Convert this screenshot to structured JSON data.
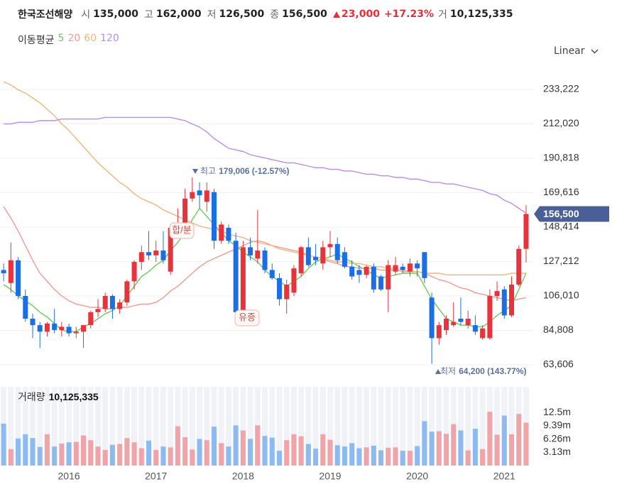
{
  "header": {
    "name": "한국조선해양",
    "fields": [
      {
        "label": "시",
        "value": "135,000"
      },
      {
        "label": "고",
        "value": "162,000"
      },
      {
        "label": "저",
        "value": "126,500"
      },
      {
        "label": "종",
        "value": "156,500"
      }
    ],
    "change": "23,000",
    "change_pct": "+17.23%",
    "volume": {
      "label": "거",
      "value": "10,125,335"
    }
  },
  "scale_menu": "Linear",
  "chart_data": {
    "type": "candlestick",
    "legend_title": "이동평균",
    "categories": [
      null,
      null,
      null,
      null,
      null,
      null,
      null,
      null,
      null,
      "2016",
      null,
      null,
      null,
      null,
      null,
      null,
      null,
      null,
      null,
      null,
      null,
      "2017",
      null,
      null,
      null,
      null,
      null,
      null,
      null,
      null,
      null,
      null,
      null,
      "2018",
      null,
      null,
      null,
      null,
      null,
      null,
      null,
      null,
      null,
      null,
      null,
      "2019",
      null,
      null,
      null,
      null,
      null,
      null,
      null,
      null,
      null,
      null,
      null,
      "2020",
      null,
      null,
      null,
      null,
      null,
      null,
      null,
      null,
      null,
      null,
      null,
      "2021",
      null,
      null,
      null
    ],
    "open": [
      122000,
      114000,
      128000,
      106000,
      92000,
      88000,
      84000,
      89000,
      85000,
      87000,
      83000,
      84000,
      88000,
      96000,
      98000,
      106000,
      98000,
      102000,
      115000,
      127000,
      133000,
      131000,
      134000,
      121000,
      148000,
      150000,
      166000,
      171000,
      164000,
      170000,
      140000,
      148000,
      140000,
      96000,
      136000,
      129000,
      134000,
      122000,
      117000,
      104000,
      108000,
      120000,
      136000,
      130000,
      126000,
      136000,
      138000,
      133000,
      124000,
      122000,
      119000,
      124000,
      118000,
      110000,
      121000,
      124000,
      121000,
      126000,
      133000,
      105000,
      80000,
      85000,
      88000,
      92000,
      88000,
      88000,
      80000,
      80000,
      106000,
      110000,
      94000,
      113000,
      135000
    ],
    "high": [
      126000,
      139000,
      130000,
      110000,
      95000,
      90000,
      90000,
      98000,
      90000,
      89000,
      87000,
      88000,
      97000,
      104000,
      108000,
      107000,
      104000,
      116000,
      128000,
      137000,
      146000,
      140000,
      146000,
      150000,
      160000,
      172000,
      179006,
      176000,
      176000,
      172000,
      152000,
      150000,
      145000,
      140000,
      142000,
      159000,
      136000,
      126000,
      120000,
      116000,
      125000,
      137000,
      142000,
      138000,
      140000,
      146000,
      142000,
      136000,
      128000,
      125000,
      125000,
      126000,
      119000,
      128000,
      130000,
      126000,
      129000,
      128000,
      133000,
      108000,
      90000,
      94000,
      102000,
      105000,
      97000,
      94000,
      88000,
      110000,
      115000,
      112000,
      118000,
      137000,
      162000
    ],
    "low": [
      115000,
      108000,
      104000,
      90000,
      80000,
      74000,
      81000,
      83000,
      81000,
      81000,
      80000,
      74000,
      86000,
      93000,
      96000,
      92000,
      95000,
      100000,
      110000,
      122000,
      128000,
      127000,
      126000,
      119000,
      146000,
      148000,
      164000,
      160000,
      158000,
      135000,
      138000,
      138000,
      95000,
      93000,
      128000,
      126000,
      120000,
      116000,
      100000,
      95000,
      106000,
      118000,
      124000,
      125000,
      122000,
      130000,
      126000,
      123000,
      116000,
      114000,
      117000,
      108000,
      109000,
      96000,
      119000,
      120000,
      118000,
      118000,
      114000,
      64200,
      76000,
      82000,
      87000,
      88000,
      86000,
      82000,
      79000,
      79000,
      103000,
      92000,
      93000,
      112000,
      126500
    ],
    "close": [
      120000,
      128000,
      106000,
      92000,
      88000,
      84000,
      89000,
      85000,
      87000,
      83000,
      84000,
      88000,
      96000,
      98000,
      106000,
      98000,
      102000,
      115000,
      127000,
      133000,
      131000,
      134000,
      128000,
      148000,
      150000,
      166000,
      170000,
      168000,
      171000,
      140000,
      150000,
      140000,
      96000,
      136000,
      131000,
      134000,
      122000,
      117000,
      104000,
      113000,
      123000,
      136000,
      125000,
      128000,
      136000,
      138000,
      128000,
      124000,
      118000,
      119000,
      124000,
      110000,
      110000,
      125000,
      125000,
      122000,
      126000,
      123000,
      117000,
      80000,
      88000,
      92000,
      90000,
      90000,
      92000,
      84000,
      86000,
      106000,
      109000,
      94000,
      113000,
      135000,
      156500
    ],
    "up_color": "#e8323c",
    "down_color": "#1b6fe6",
    "moving_averages": [
      {
        "name": "5",
        "color": "#6cc95a",
        "values": [
          113000,
          110000,
          106000,
          103000,
          100000,
          96000,
          93000,
          89000,
          85000,
          84000,
          84000,
          87000,
          89000,
          92000,
          95000,
          97000,
          100000,
          106000,
          112000,
          118000,
          121000,
          125000,
          128000,
          134000,
          139000,
          145000,
          153000,
          160000,
          155000,
          150000,
          145000,
          140000,
          137000,
          133000,
          130000,
          127000,
          122000,
          118000,
          115000,
          112000,
          115000,
          118000,
          123000,
          127000,
          129000,
          130000,
          132000,
          129000,
          127000,
          124000,
          122000,
          119000,
          117000,
          118000,
          119000,
          120000,
          120000,
          120000,
          112000,
          104000,
          98000,
          92000,
          90000,
          88000,
          88000,
          87000,
          87000,
          90000,
          94000,
          97000,
          100000,
          110000,
          120000
        ]
      },
      {
        "name": "20",
        "color": "#f09a94",
        "values": [
          161000,
          154000,
          146000,
          137000,
          128000,
          120000,
          115000,
          110000,
          106000,
          103000,
          101000,
          100000,
          99000,
          99000,
          98000,
          98000,
          99000,
          99000,
          100000,
          101000,
          101000,
          102000,
          105000,
          109000,
          112000,
          116000,
          120000,
          124000,
          127000,
          129000,
          131000,
          133000,
          135000,
          137000,
          139000,
          140000,
          139000,
          137000,
          136000,
          135000,
          134000,
          133000,
          131000,
          130000,
          129000,
          127000,
          126000,
          124000,
          124000,
          123000,
          123000,
          123000,
          122000,
          122000,
          122000,
          121000,
          121000,
          121000,
          120000,
          118000,
          116000,
          115000,
          113000,
          111000,
          110000,
          108000,
          107000,
          106000,
          105000,
          104000,
          103000,
          104000,
          105000
        ]
      },
      {
        "name": "60",
        "color": "#f3b478",
        "values": [
          238000,
          236000,
          233000,
          231000,
          228000,
          225000,
          221000,
          217000,
          212000,
          208000,
          203000,
          198000,
          193000,
          188000,
          184000,
          180000,
          176000,
          173000,
          169000,
          166000,
          164000,
          162000,
          159000,
          157000,
          155000,
          153000,
          151000,
          149000,
          148000,
          147000,
          146000,
          144000,
          143000,
          142000,
          140000,
          139000,
          138000,
          137000,
          135000,
          134000,
          133000,
          132000,
          131000,
          130000,
          129000,
          128000,
          127000,
          127000,
          126000,
          126000,
          125000,
          124000,
          124000,
          123000,
          123000,
          122000,
          121000,
          121000,
          120000,
          120000,
          120000,
          119000,
          119000,
          119000,
          119000,
          119000,
          119000,
          119000,
          119000,
          119000,
          120000,
          120000,
          120000
        ]
      },
      {
        "name": "120",
        "color": "#b98cec",
        "values": [
          212000,
          212000,
          213000,
          213000,
          213000,
          214000,
          214000,
          214000,
          215000,
          215000,
          215000,
          215000,
          215000,
          215000,
          216000,
          216000,
          216000,
          216000,
          216000,
          216000,
          216000,
          216000,
          216000,
          216000,
          215000,
          214000,
          212000,
          210000,
          207000,
          203000,
          200000,
          197000,
          196000,
          195000,
          193000,
          192000,
          191000,
          190000,
          189000,
          188000,
          188000,
          187000,
          186000,
          185000,
          185000,
          184000,
          184000,
          183000,
          183000,
          182000,
          181000,
          181000,
          180000,
          180000,
          179000,
          179000,
          178000,
          178000,
          177000,
          176000,
          176000,
          175000,
          175000,
          174000,
          173000,
          172000,
          171000,
          169000,
          168000,
          165000,
          163000,
          160000,
          157000
        ]
      }
    ],
    "ylim": [
      54400,
      244600
    ],
    "yticks": [
      {
        "value": 63606,
        "label": "63,606"
      },
      {
        "value": 84808,
        "label": "84,808"
      },
      {
        "value": 106010,
        "label": "106,010"
      },
      {
        "value": 127212,
        "label": "127,212"
      },
      {
        "value": 148414,
        "label": "148,414"
      },
      {
        "value": 169616,
        "label": "169,616"
      },
      {
        "value": 190818,
        "label": "190,818"
      },
      {
        "value": 212020,
        "label": "212,020"
      },
      {
        "value": 233222,
        "label": "233,222"
      }
    ],
    "grid": true,
    "annotations": [
      {
        "text": "최고",
        "value": "179,006 (-12.57%)"
      },
      {
        "text": "최저",
        "value": "64,200 (143.77%)"
      },
      {
        "text": "합/분"
      },
      {
        "text": "유증"
      }
    ],
    "last_price": {
      "value": 156500,
      "label": "156,500"
    },
    "volume": {
      "title": "거래량",
      "total": "10,125,335",
      "values": [
        9900000,
        3900000,
        6400000,
        7400000,
        6500000,
        4400000,
        7400000,
        4500000,
        5200000,
        5500000,
        5600000,
        7100000,
        6000000,
        4500000,
        3700000,
        4900000,
        5100000,
        6500000,
        5500000,
        4100000,
        5900000,
        3700000,
        4500000,
        4300000,
        9300000,
        6700000,
        3800000,
        6300000,
        6000000,
        9200000,
        5300000,
        4500000,
        9500000,
        8300000,
        6300000,
        9500000,
        7000000,
        6600000,
        3500000,
        6000000,
        7400000,
        6900000,
        5100000,
        4000000,
        7400000,
        6100000,
        4800000,
        4500000,
        5300000,
        4100000,
        4300000,
        4700000,
        3600000,
        4200000,
        4300000,
        3500000,
        3500000,
        4600000,
        10500000,
        8000000,
        8100000,
        7500000,
        9800000,
        8300000,
        3600000,
        8700000,
        3900000,
        12700000,
        7300000,
        11800000,
        7400000,
        12200000,
        10125335
      ],
      "ylim": [
        0,
        18600000
      ],
      "yticks": [
        {
          "value": 3130000,
          "label": "3.13m"
        },
        {
          "value": 6260000,
          "label": "6.26m"
        },
        {
          "value": 9390000,
          "label": "9.39m"
        },
        {
          "value": 12500000,
          "label": "12.5m"
        }
      ],
      "up_color": "#f2a3a8",
      "down_color": "#8dbaf0"
    }
  }
}
